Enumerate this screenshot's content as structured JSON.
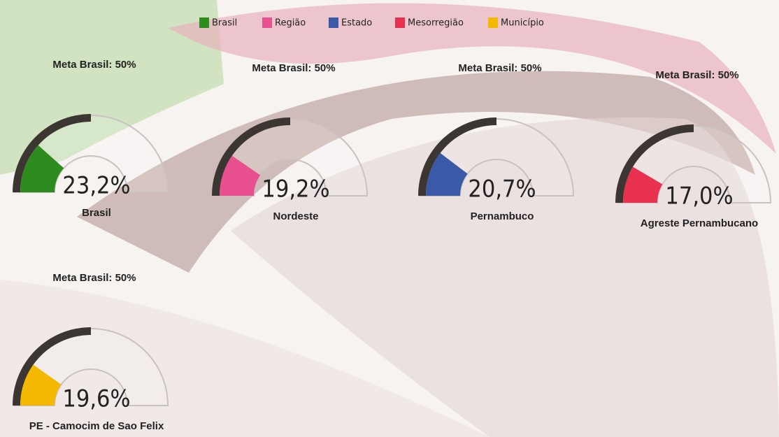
{
  "legend": [
    {
      "name": "Brasil",
      "color": "#2e8b1e"
    },
    {
      "name": "Região",
      "color": "#e8508f"
    },
    {
      "name": "Estado",
      "color": "#3a5aa8"
    },
    {
      "name": "Mesorregião",
      "color": "#e8304f"
    },
    {
      "name": "Município",
      "color": "#f5b800"
    }
  ],
  "chart_data": [
    {
      "type": "gauge",
      "title": "Meta Brasil: 50%",
      "name": "Brasil",
      "value": 23.2,
      "value_label": "23,2%",
      "target": 50,
      "ylim": [
        0,
        100
      ],
      "color": "#2e8b1e"
    },
    {
      "type": "gauge",
      "title": "Meta Brasil: 50%",
      "name": "Nordeste",
      "value": 19.2,
      "value_label": "19,2%",
      "target": 50,
      "ylim": [
        0,
        100
      ],
      "color": "#e8508f"
    },
    {
      "type": "gauge",
      "title": "Meta Brasil: 50%",
      "name": "Pernambuco",
      "value": 20.7,
      "value_label": "20,7%",
      "target": 50,
      "ylim": [
        0,
        100
      ],
      "color": "#3a5aa8"
    },
    {
      "type": "gauge",
      "title": "Meta Brasil: 50%",
      "name": "Agreste Pernambucano",
      "value": 17.0,
      "value_label": "17,0%",
      "target": 50,
      "ylim": [
        0,
        100
      ],
      "color": "#e8304f"
    },
    {
      "type": "gauge",
      "title": "Meta Brasil: 50%",
      "name": "PE - Camocim de Sao Felix",
      "value": 19.6,
      "value_label": "19,6%",
      "target": 50,
      "ylim": [
        0,
        100
      ],
      "color": "#f5b800"
    }
  ]
}
